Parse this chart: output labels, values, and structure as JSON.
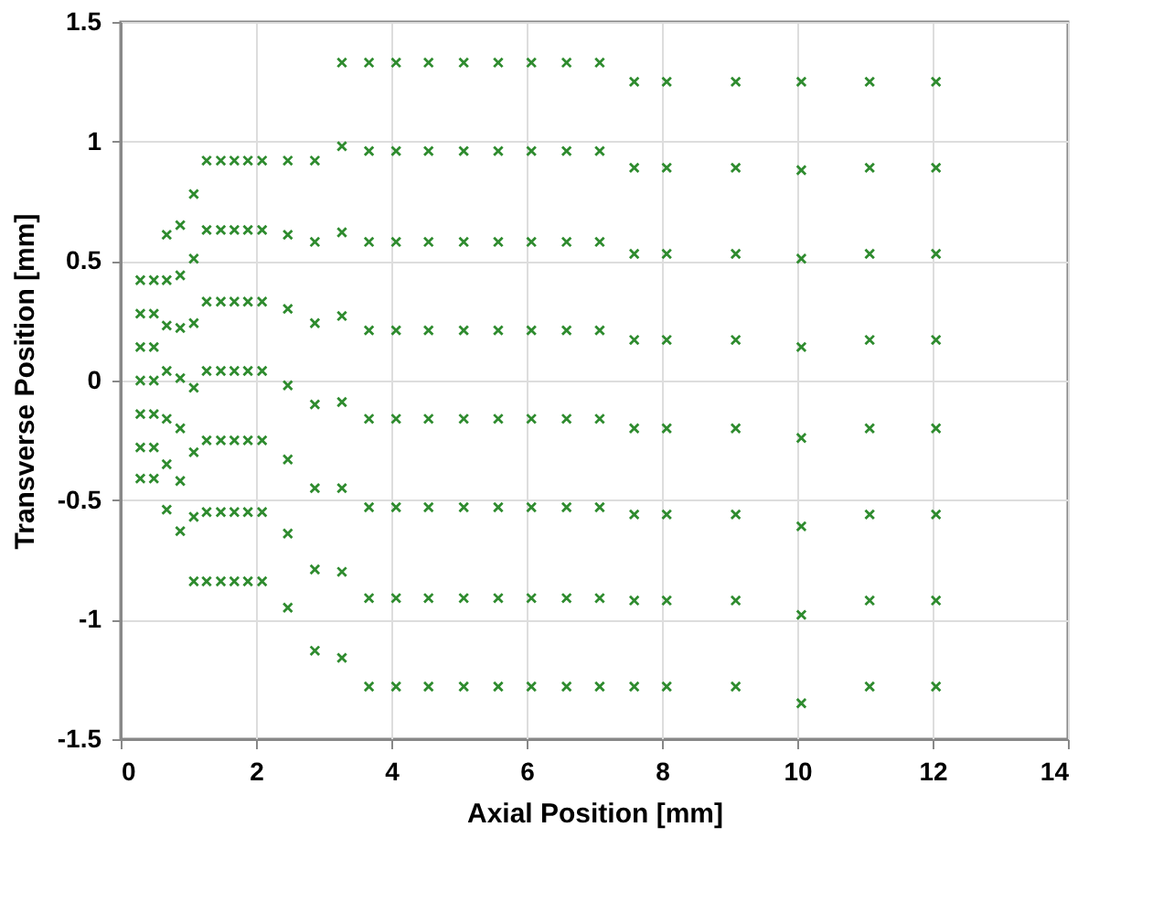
{
  "chart_data": {
    "type": "scatter",
    "xlabel": "Axial Position [mm]",
    "ylabel": "Transverse Position [mm]",
    "xlim": [
      0,
      14
    ],
    "xticks": [
      0,
      2,
      4,
      6,
      8,
      10,
      12,
      14
    ],
    "ylim": [
      -1.5,
      1.5
    ],
    "yticks": [
      -1.5,
      -1,
      -0.5,
      0,
      0.5,
      1,
      1.5
    ],
    "grid": true,
    "marker": "cross",
    "series": [
      {
        "color": "#2e8b2e",
        "x": [
          0.29,
          0.29,
          0.29,
          0.29,
          0.29,
          0.29,
          0.29
        ],
        "values": [
          0.42,
          0.28,
          0.14,
          0,
          -0.14,
          -0.28,
          -0.41
        ]
      },
      {
        "color": "#2e8b2e",
        "x": [
          0.49,
          0.49,
          0.49,
          0.49,
          0.49,
          0.49,
          0.49
        ],
        "values": [
          0.42,
          0.28,
          0.14,
          0,
          -0.14,
          -0.28,
          -0.41
        ]
      },
      {
        "color": "#2e8b2e",
        "x": [
          0.68,
          0.68,
          0.68,
          0.68,
          0.68,
          0.68,
          0.68
        ],
        "values": [
          0.61,
          0.42,
          0.23,
          0.04,
          -0.16,
          -0.35,
          -0.54
        ]
      },
      {
        "color": "#2e8b2e",
        "x": [
          0.88,
          0.88,
          0.88,
          0.88,
          0.88,
          0.88,
          0.88
        ],
        "values": [
          0.65,
          0.44,
          0.22,
          0.01,
          -0.2,
          -0.42,
          -0.63
        ]
      },
      {
        "color": "#2e8b2e",
        "x": [
          1.08,
          1.08,
          1.08,
          1.08,
          1.08,
          1.08,
          1.08
        ],
        "values": [
          0.78,
          0.51,
          0.24,
          -0.03,
          -0.3,
          -0.57,
          -0.84
        ]
      },
      {
        "color": "#2e8b2e",
        "x": [
          1.27,
          1.27,
          1.27,
          1.27,
          1.27,
          1.27,
          1.27
        ],
        "values": [
          0.92,
          0.63,
          0.33,
          0.04,
          -0.25,
          -0.55,
          -0.84
        ]
      },
      {
        "color": "#2e8b2e",
        "x": [
          1.48,
          1.48,
          1.48,
          1.48,
          1.48,
          1.48,
          1.48
        ],
        "values": [
          0.92,
          0.63,
          0.33,
          0.04,
          -0.25,
          -0.55,
          -0.84
        ]
      },
      {
        "color": "#2e8b2e",
        "x": [
          1.68,
          1.68,
          1.68,
          1.68,
          1.68,
          1.68,
          1.68
        ],
        "values": [
          0.92,
          0.63,
          0.33,
          0.04,
          -0.25,
          -0.55,
          -0.84
        ]
      },
      {
        "color": "#2e8b2e",
        "x": [
          1.88,
          1.88,
          1.88,
          1.88,
          1.88,
          1.88,
          1.88
        ],
        "values": [
          0.92,
          0.63,
          0.33,
          0.04,
          -0.25,
          -0.55,
          -0.84
        ]
      },
      {
        "color": "#2e8b2e",
        "x": [
          2.09,
          2.09,
          2.09,
          2.09,
          2.09,
          2.09,
          2.09
        ],
        "values": [
          0.92,
          0.63,
          0.33,
          0.04,
          -0.25,
          -0.55,
          -0.84
        ]
      },
      {
        "color": "#2e8b2e",
        "x": [
          2.47,
          2.47,
          2.47,
          2.47,
          2.47,
          2.47,
          2.47
        ],
        "values": [
          0.92,
          0.61,
          0.3,
          -0.02,
          -0.33,
          -0.64,
          -0.95
        ]
      },
      {
        "color": "#2e8b2e",
        "x": [
          2.87,
          2.87,
          2.87,
          2.87,
          2.87,
          2.87,
          2.87
        ],
        "values": [
          0.92,
          0.58,
          0.24,
          -0.1,
          -0.45,
          -0.79,
          -1.13
        ]
      },
      {
        "color": "#2e8b2e",
        "x": [
          3.27,
          3.27,
          3.27,
          3.27,
          3.27,
          3.27,
          3.27,
          3.27
        ],
        "values": [
          1.33,
          0.98,
          0.62,
          0.27,
          -0.09,
          -0.45,
          -0.8,
          -1.16
        ]
      },
      {
        "color": "#2e8b2e",
        "x": [
          3.67,
          3.67,
          3.67,
          3.67,
          3.67,
          3.67,
          3.67,
          3.67
        ],
        "values": [
          1.33,
          0.96,
          0.58,
          0.21,
          -0.16,
          -0.53,
          -0.91,
          -1.28
        ]
      },
      {
        "color": "#2e8b2e",
        "x": [
          4.07,
          4.07,
          4.07,
          4.07,
          4.07,
          4.07,
          4.07,
          4.07
        ],
        "values": [
          1.33,
          0.96,
          0.58,
          0.21,
          -0.16,
          -0.53,
          -0.91,
          -1.28
        ]
      },
      {
        "color": "#2e8b2e",
        "x": [
          4.55,
          4.55,
          4.55,
          4.55,
          4.55,
          4.55,
          4.55,
          4.55
        ],
        "values": [
          1.33,
          0.96,
          0.58,
          0.21,
          -0.16,
          -0.53,
          -0.91,
          -1.28
        ]
      },
      {
        "color": "#2e8b2e",
        "x": [
          5.07,
          5.07,
          5.07,
          5.07,
          5.07,
          5.07,
          5.07,
          5.07
        ],
        "values": [
          1.33,
          0.96,
          0.58,
          0.21,
          -0.16,
          -0.53,
          -0.91,
          -1.28
        ]
      },
      {
        "color": "#2e8b2e",
        "x": [
          5.58,
          5.58,
          5.58,
          5.58,
          5.58,
          5.58,
          5.58,
          5.58
        ],
        "values": [
          1.33,
          0.96,
          0.58,
          0.21,
          -0.16,
          -0.53,
          -0.91,
          -1.28
        ]
      },
      {
        "color": "#2e8b2e",
        "x": [
          6.07,
          6.07,
          6.07,
          6.07,
          6.07,
          6.07,
          6.07,
          6.07
        ],
        "values": [
          1.33,
          0.96,
          0.58,
          0.21,
          -0.16,
          -0.53,
          -0.91,
          -1.28
        ]
      },
      {
        "color": "#2e8b2e",
        "x": [
          6.59,
          6.59,
          6.59,
          6.59,
          6.59,
          6.59,
          6.59,
          6.59
        ],
        "values": [
          1.33,
          0.96,
          0.58,
          0.21,
          -0.16,
          -0.53,
          -0.91,
          -1.28
        ]
      },
      {
        "color": "#2e8b2e",
        "x": [
          7.08,
          7.08,
          7.08,
          7.08,
          7.08,
          7.08,
          7.08,
          7.08
        ],
        "values": [
          1.33,
          0.96,
          0.58,
          0.21,
          -0.16,
          -0.53,
          -0.91,
          -1.28
        ]
      },
      {
        "color": "#2e8b2e",
        "x": [
          7.59,
          7.59,
          7.59,
          7.59,
          7.59,
          7.59,
          7.59,
          7.59
        ],
        "values": [
          1.25,
          0.89,
          0.53,
          0.17,
          -0.2,
          -0.56,
          -0.92,
          -1.28
        ]
      },
      {
        "color": "#2e8b2e",
        "x": [
          8.07,
          8.07,
          8.07,
          8.07,
          8.07,
          8.07,
          8.07,
          8.07
        ],
        "values": [
          1.25,
          0.89,
          0.53,
          0.17,
          -0.2,
          -0.56,
          -0.92,
          -1.28
        ]
      },
      {
        "color": "#2e8b2e",
        "x": [
          9.09,
          9.09,
          9.09,
          9.09,
          9.09,
          9.09,
          9.09,
          9.09
        ],
        "values": [
          1.25,
          0.89,
          0.53,
          0.17,
          -0.2,
          -0.56,
          -0.92,
          -1.28
        ]
      },
      {
        "color": "#2e8b2e",
        "x": [
          10.06,
          10.06,
          10.06,
          10.06,
          10.06,
          10.06,
          10.06,
          10.06
        ],
        "values": [
          1.25,
          0.88,
          0.51,
          0.14,
          -0.24,
          -0.61,
          -0.98,
          -1.35
        ]
      },
      {
        "color": "#2e8b2e",
        "x": [
          11.07,
          11.07,
          11.07,
          11.07,
          11.07,
          11.07,
          11.07,
          11.07
        ],
        "values": [
          1.25,
          0.89,
          0.53,
          0.17,
          -0.2,
          -0.56,
          -0.92,
          -1.28
        ]
      },
      {
        "color": "#2e8b2e",
        "x": [
          12.05,
          12.05,
          12.05,
          12.05,
          12.05,
          12.05,
          12.05,
          12.05
        ],
        "values": [
          1.25,
          0.89,
          0.53,
          0.17,
          -0.2,
          -0.56,
          -0.92,
          -1.28
        ]
      }
    ]
  }
}
